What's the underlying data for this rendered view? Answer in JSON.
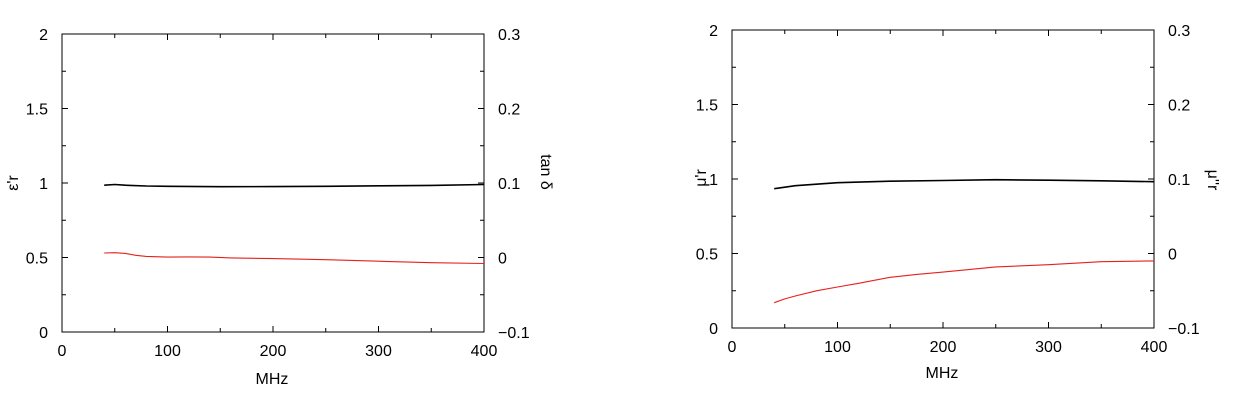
{
  "chart_data": [
    {
      "type": "line",
      "xlabel": "MHz",
      "ylabel": "ε'r",
      "y2label": "tan δ",
      "xlim": [
        0,
        400
      ],
      "ylim": [
        0,
        2
      ],
      "y2lim": [
        -0.1,
        0.3
      ],
      "x_ticks": [
        "0",
        "100",
        "200",
        "300",
        "400"
      ],
      "y_ticks": [
        "0",
        "0.5",
        "1",
        "1.5",
        "2"
      ],
      "y2_ticks": [
        "−0.1",
        "0",
        "0.1",
        "0.2",
        "0.3"
      ],
      "grid": false,
      "series": [
        {
          "axis": "left",
          "color": "#000000",
          "x": [
            40,
            50,
            60,
            80,
            100,
            150,
            200,
            250,
            300,
            350,
            400
          ],
          "y": [
            0.985,
            0.99,
            0.985,
            0.98,
            0.978,
            0.975,
            0.976,
            0.978,
            0.981,
            0.984,
            0.99
          ]
        },
        {
          "axis": "right",
          "color": "#e8201a",
          "x": [
            40,
            50,
            60,
            70,
            80,
            100,
            120,
            140,
            160,
            200,
            250,
            300,
            350,
            400
          ],
          "y": [
            0.006,
            0.0065,
            0.0055,
            0.003,
            0.0015,
            0.0005,
            0.0008,
            0.0005,
            -0.0005,
            -0.0015,
            -0.003,
            -0.005,
            -0.007,
            -0.008
          ]
        }
      ]
    },
    {
      "type": "line",
      "xlabel": "MHz",
      "ylabel": "μ'r",
      "y2label": "μ''r",
      "xlim": [
        0,
        400
      ],
      "ylim": [
        0,
        2
      ],
      "y2lim": [
        -0.1,
        0.3
      ],
      "x_ticks": [
        "0",
        "100",
        "200",
        "300",
        "400"
      ],
      "y_ticks": [
        "0",
        "0.5",
        "1",
        "1.5",
        "2"
      ],
      "y2_ticks": [
        "−0.1",
        "0",
        "0.1",
        "0.2",
        "0.3"
      ],
      "grid": false,
      "series": [
        {
          "axis": "left",
          "color": "#000000",
          "x": [
            40,
            50,
            60,
            80,
            100,
            150,
            200,
            250,
            300,
            350,
            400
          ],
          "y": [
            0.935,
            0.945,
            0.955,
            0.965,
            0.975,
            0.985,
            0.99,
            0.995,
            0.992,
            0.988,
            0.982
          ]
        },
        {
          "axis": "right",
          "color": "#e8201a",
          "x": [
            40,
            50,
            60,
            80,
            100,
            120,
            150,
            175,
            200,
            250,
            300,
            350,
            400
          ],
          "y": [
            -0.066,
            -0.061,
            -0.057,
            -0.05,
            -0.045,
            -0.04,
            -0.032,
            -0.028,
            -0.025,
            -0.018,
            -0.015,
            -0.011,
            -0.01
          ]
        }
      ]
    }
  ]
}
